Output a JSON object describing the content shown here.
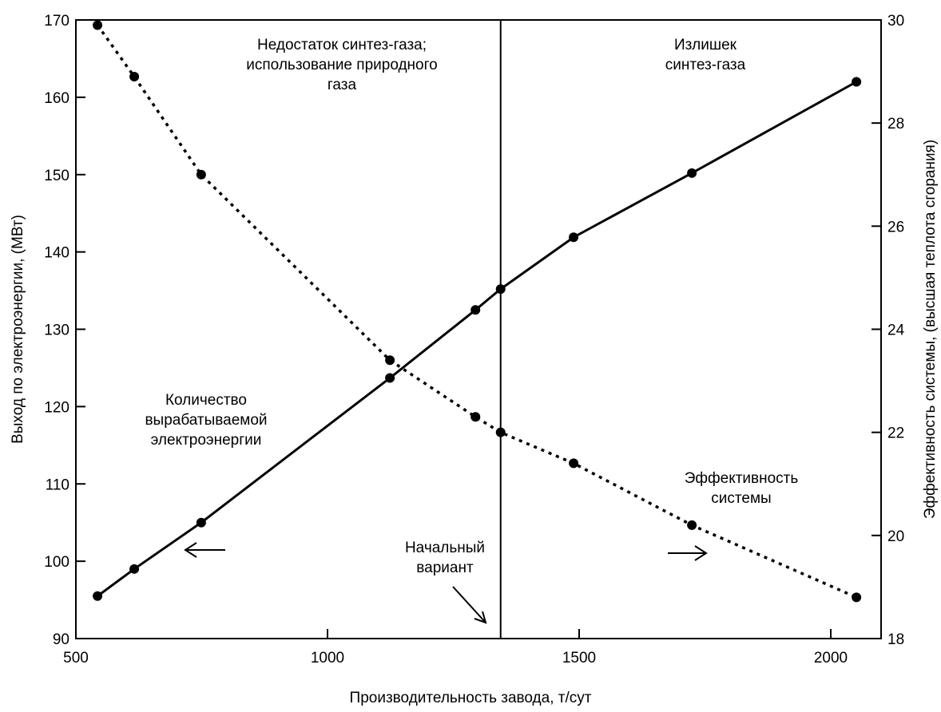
{
  "chart_data": {
    "type": "line",
    "x_label": "Производительность завода, т/сут",
    "y_label": "Выход по электроэнергии, (МВт)",
    "y2_label": "Эффективность системы, (высшая теплота сгорания)",
    "xlim": [
      500,
      2100
    ],
    "xticks": [
      500,
      1000,
      1500,
      2000
    ],
    "ylim": [
      90,
      170
    ],
    "yticks": [
      90,
      100,
      110,
      120,
      130,
      140,
      150,
      160,
      170
    ],
    "y2lim": [
      18,
      30
    ],
    "y2ticks": [
      18,
      20,
      22,
      24,
      26,
      28,
      30
    ],
    "vline": 1344,
    "annotations": [
      [
        "Недостаток синтез-газа;",
        "использование природного",
        "газа"
      ],
      [
        "Излишек",
        "синтез-газа"
      ],
      [
        "Количество",
        "вырабатываемой",
        "электроэнергии"
      ],
      [
        "Эффективность",
        "системы"
      ],
      [
        "Начальный",
        "вариант"
      ]
    ],
    "series": [
      {
        "style": "solid",
        "color": "#000000",
        "x": [
          543,
          616,
          749,
          1124,
          1294,
          1344,
          1489,
          1724,
          2051
        ],
        "values": [
          95.5,
          99.0,
          105.0,
          123.7,
          132.5,
          135.2,
          141.9,
          150.2,
          162.0
        ]
      },
      {
        "style": "dotted",
        "color": "#000000",
        "axis": "y2",
        "x": [
          543,
          616,
          749,
          1124,
          1294,
          1344,
          1489,
          1724,
          2051
        ],
        "values": [
          29.9,
          28.9,
          27.0,
          23.4,
          22.3,
          22.0,
          21.4,
          20.2,
          18.8
        ]
      }
    ]
  }
}
